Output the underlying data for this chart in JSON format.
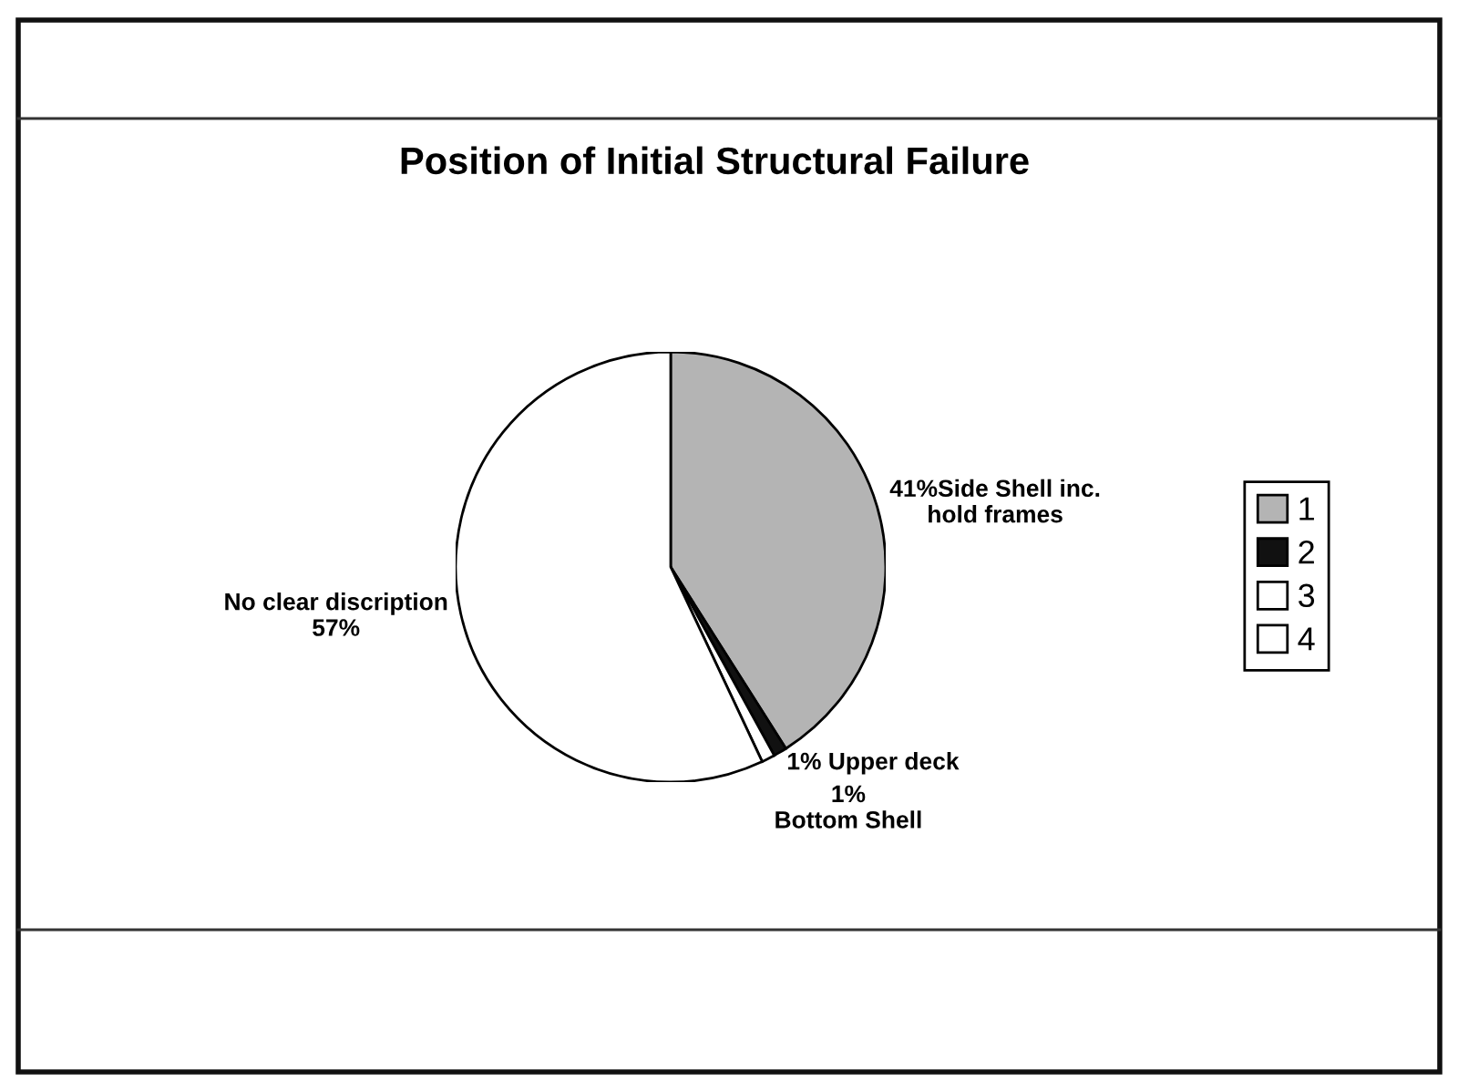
{
  "chart_data": {
    "type": "pie",
    "title": "Position of Initial Structural Failure",
    "categories": [
      "1",
      "2",
      "3",
      "4"
    ],
    "values": [
      41,
      1,
      1,
      57
    ],
    "colors": [
      "#b4b4b4",
      "#111111",
      "#ffffff",
      "#ffffff"
    ],
    "value_labels": [
      "41%Side Shell inc.\nhold frames",
      "1% Upper deck",
      "1%\nBottom Shell",
      "No clear discription\n57%"
    ],
    "legend": "right"
  }
}
